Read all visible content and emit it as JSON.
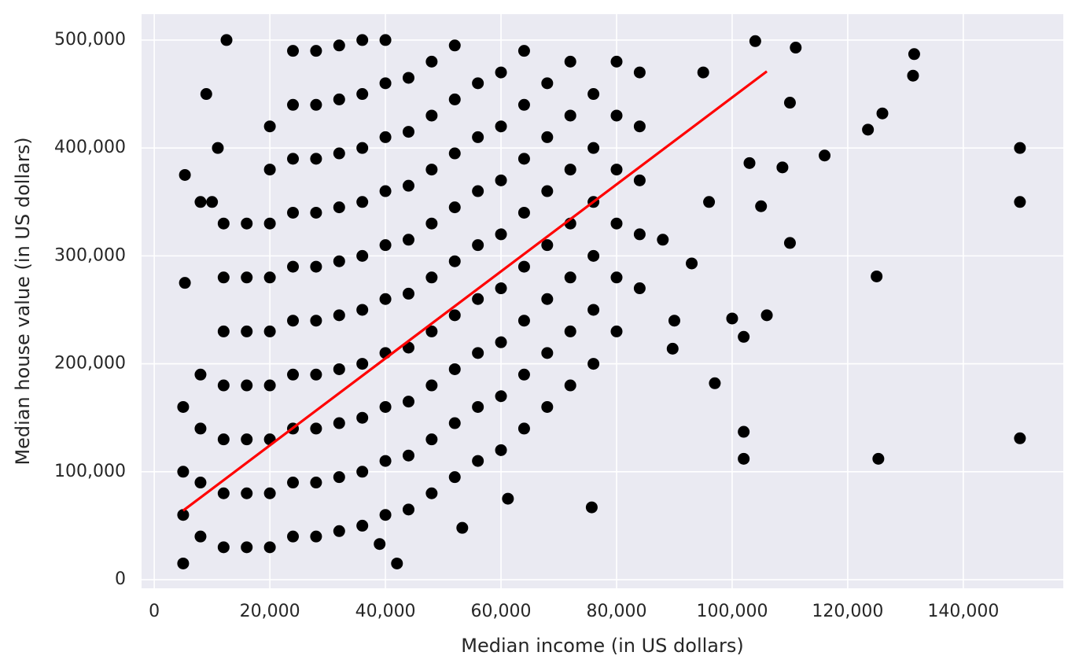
{
  "chart_data": {
    "type": "scatter",
    "xlabel": "Median income (in US dollars)",
    "ylabel": "Median house value (in US dollars)",
    "xlim": [
      -2200,
      157300
    ],
    "ylim": [
      -8000,
      524000
    ],
    "xticks": [
      0,
      {
        "value": 20000,
        "label": "20,000"
      },
      {
        "value": 40000,
        "label": "40,000"
      },
      {
        "value": 60000,
        "label": "60,000"
      },
      {
        "value": 80000,
        "label": "80,000"
      },
      {
        "value": 100000,
        "label": "100,000"
      },
      {
        "value": 120000,
        "label": "120,000"
      },
      {
        "value": 140000,
        "label": "140,000"
      }
    ],
    "yticks": [
      0,
      {
        "value": 100000,
        "label": "100,000"
      },
      {
        "value": 200000,
        "label": "200,000"
      },
      {
        "value": 300000,
        "label": "300,000"
      },
      {
        "value": 400000,
        "label": "400,000"
      },
      {
        "value": 500000,
        "label": "500,000"
      }
    ],
    "grid": true,
    "background": "#eaeaf2",
    "series": [
      {
        "type": "scatter",
        "color": "#000000",
        "x": [
          8000,
          8000,
          8000,
          8000,
          12000,
          12000,
          12000,
          12000,
          12000,
          12000,
          12000,
          16000,
          16000,
          16000,
          16000,
          16000,
          16000,
          16000,
          20000,
          20000,
          20000,
          20000,
          20000,
          20000,
          20000,
          20000,
          20000,
          24000,
          24000,
          24000,
          24000,
          24000,
          24000,
          24000,
          24000,
          24000,
          24000,
          28000,
          28000,
          28000,
          28000,
          28000,
          28000,
          28000,
          28000,
          28000,
          28000,
          32000,
          32000,
          32000,
          32000,
          32000,
          32000,
          32000,
          32000,
          32000,
          32000,
          36000,
          36000,
          36000,
          36000,
          36000,
          36000,
          36000,
          36000,
          36000,
          36000,
          40000,
          40000,
          40000,
          40000,
          40000,
          40000,
          40000,
          40000,
          40000,
          40000,
          44000,
          44000,
          44000,
          44000,
          44000,
          44000,
          44000,
          44000,
          44000,
          48000,
          48000,
          48000,
          48000,
          48000,
          48000,
          48000,
          48000,
          48000,
          52000,
          52000,
          52000,
          52000,
          52000,
          52000,
          52000,
          52000,
          52000,
          56000,
          56000,
          56000,
          56000,
          56000,
          56000,
          56000,
          56000,
          60000,
          60000,
          60000,
          60000,
          60000,
          60000,
          60000,
          60000,
          64000,
          64000,
          64000,
          64000,
          64000,
          64000,
          64000,
          64000,
          68000,
          68000,
          68000,
          68000,
          68000,
          68000,
          68000,
          72000,
          72000,
          72000,
          72000,
          72000,
          72000,
          72000,
          76000,
          76000,
          76000,
          76000,
          76000,
          76000,
          80000,
          80000,
          80000,
          80000,
          80000,
          80000,
          84000,
          84000,
          84000,
          84000,
          84000,
          149800,
          149800,
          149800,
          131500,
          131300,
          125000,
          125300,
          123500,
          126000,
          116000,
          108700,
          110000,
          110000,
          106000,
          102000,
          102000,
          102000,
          100000,
          97000,
          96000,
          93000,
          89700,
          90000,
          75700,
          61200,
          53300,
          42000,
          39000,
          5000,
          12500,
          9000,
          5300,
          5300,
          11000,
          104000,
          111000,
          105000,
          103000,
          88000,
          5000,
          5000,
          5000,
          8000,
          10000,
          95000
        ],
        "values": [
          40000,
          90000,
          140000,
          190000,
          30000,
          80000,
          130000,
          180000,
          230000,
          280000,
          330000,
          30000,
          80000,
          130000,
          180000,
          230000,
          280000,
          330000,
          30000,
          80000,
          130000,
          180000,
          230000,
          280000,
          330000,
          380000,
          420000,
          40000,
          90000,
          140000,
          190000,
          240000,
          290000,
          340000,
          390000,
          440000,
          490000,
          40000,
          90000,
          140000,
          190000,
          240000,
          290000,
          340000,
          390000,
          440000,
          490000,
          45000,
          95000,
          145000,
          195000,
          245000,
          295000,
          345000,
          395000,
          445000,
          495000,
          50000,
          100000,
          150000,
          200000,
          250000,
          300000,
          350000,
          400000,
          450000,
          500000,
          60000,
          110000,
          160000,
          210000,
          260000,
          310000,
          360000,
          410000,
          460000,
          500000,
          65000,
          115000,
          165000,
          215000,
          265000,
          315000,
          365000,
          415000,
          465000,
          80000,
          130000,
          180000,
          230000,
          280000,
          330000,
          380000,
          430000,
          480000,
          95000,
          145000,
          195000,
          245000,
          295000,
          345000,
          395000,
          445000,
          495000,
          110000,
          160000,
          210000,
          260000,
          310000,
          360000,
          410000,
          460000,
          120000,
          170000,
          220000,
          270000,
          320000,
          370000,
          420000,
          470000,
          140000,
          190000,
          240000,
          290000,
          340000,
          390000,
          440000,
          490000,
          160000,
          210000,
          260000,
          310000,
          360000,
          410000,
          460000,
          180000,
          230000,
          280000,
          330000,
          380000,
          430000,
          480000,
          200000,
          250000,
          300000,
          350000,
          400000,
          450000,
          230000,
          280000,
          330000,
          380000,
          430000,
          480000,
          270000,
          320000,
          370000,
          420000,
          470000,
          400000,
          350000,
          131000,
          487000,
          467000,
          281000,
          112000,
          417000,
          432000,
          393000,
          382000,
          312000,
          442000,
          245000,
          225000,
          137000,
          112000,
          242000,
          182000,
          350000,
          293000,
          214000,
          240000,
          67000,
          75000,
          48000,
          15000,
          33000,
          15000,
          500000,
          450000,
          375000,
          275000,
          400000,
          499000,
          493000,
          346000,
          386000,
          315000,
          100000,
          60000,
          160000,
          350000,
          350000,
          470000
        ]
      },
      {
        "type": "line",
        "color": "#ff0000",
        "x": [
          5000,
          106000
        ],
        "values": [
          64000,
          471000
        ]
      }
    ]
  }
}
